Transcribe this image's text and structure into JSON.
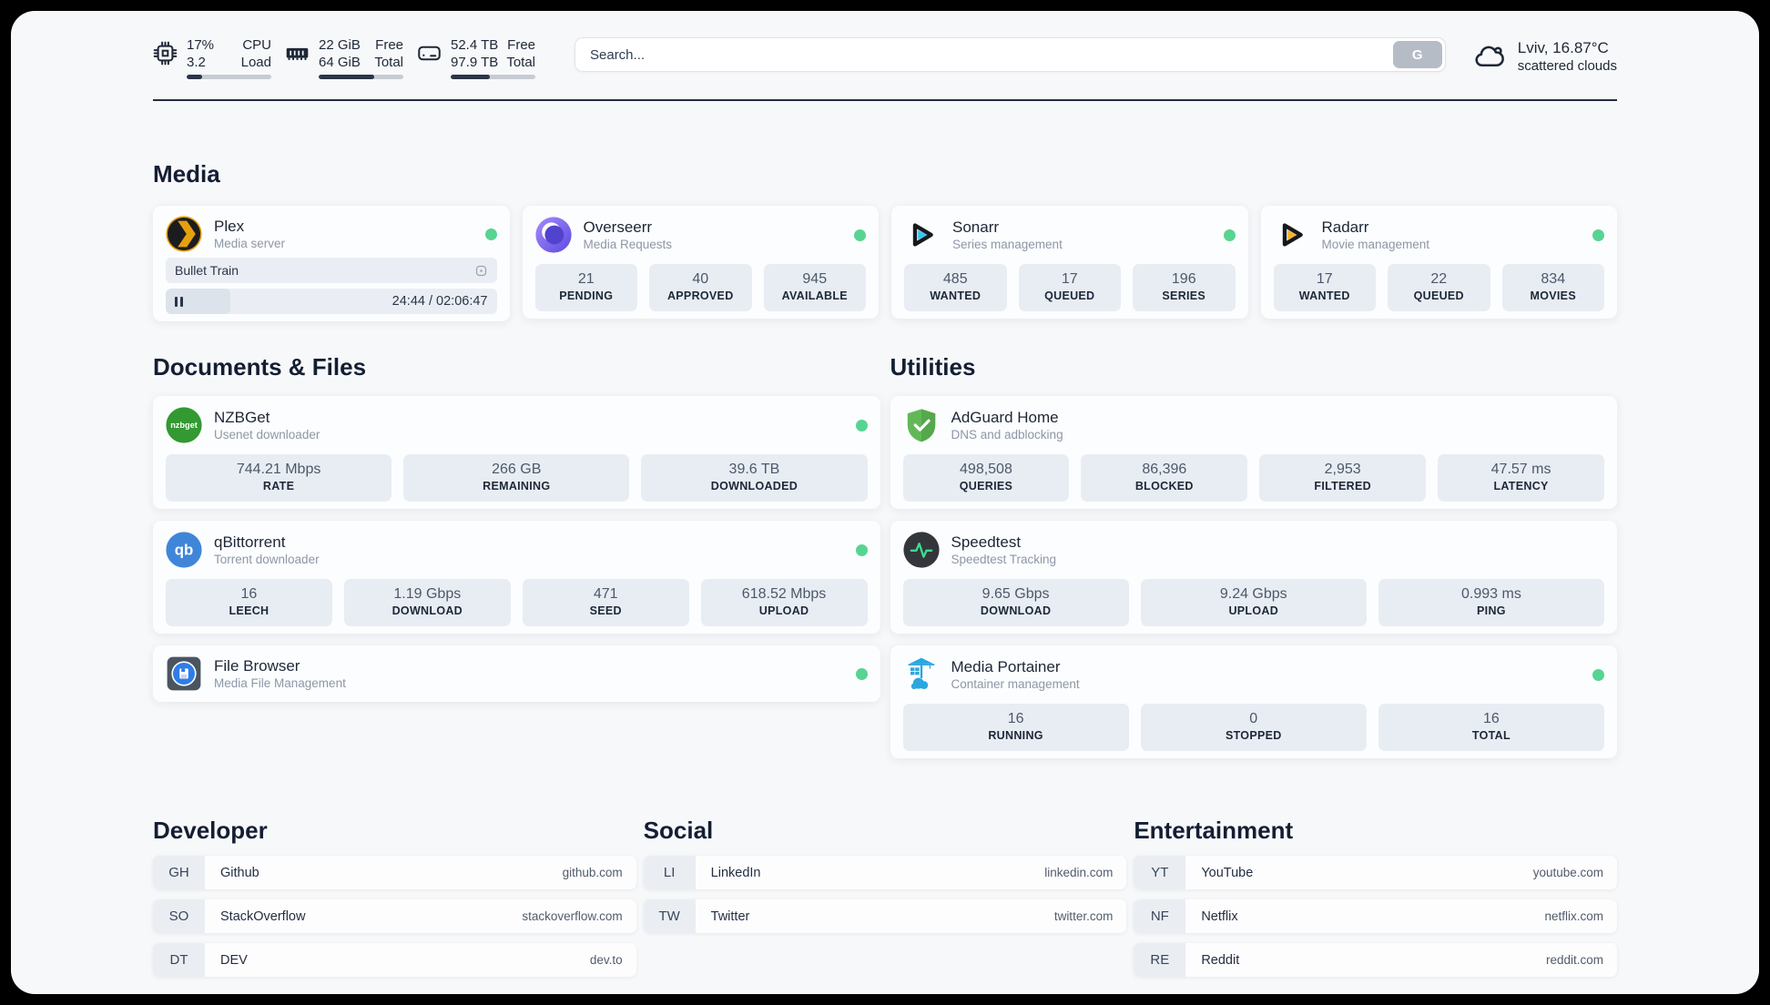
{
  "topbar": {
    "cpu": {
      "value_top": "17%",
      "value_bottom": "3.2",
      "label_top": "CPU",
      "label_bottom": "Load",
      "progress": 18
    },
    "memory": {
      "value_top": "22 GiB",
      "value_bottom": "64 GiB",
      "label_top": "Free",
      "label_bottom": "Total",
      "progress": 66
    },
    "disk": {
      "value_top": "52.4 TB",
      "value_bottom": "97.9 TB",
      "label_top": "Free",
      "label_bottom": "Total",
      "progress": 46
    },
    "search": {
      "placeholder": "Search...",
      "button_label": "G"
    },
    "weather": {
      "location_temp": "Lviv, 16.87°C",
      "condition": "scattered clouds"
    }
  },
  "sections": {
    "media": "Media",
    "documents": "Documents & Files",
    "utilities": "Utilities",
    "developer": "Developer",
    "social": "Social",
    "entertainment": "Entertainment"
  },
  "apps": {
    "plex": {
      "name": "Plex",
      "subtitle": "Media server",
      "now_playing": "Bullet Train",
      "time": "24:44 / 02:06:47",
      "progress": 19.5
    },
    "overseerr": {
      "name": "Overseerr",
      "subtitle": "Media Requests",
      "stats": [
        {
          "value": "21",
          "label": "PENDING"
        },
        {
          "value": "40",
          "label": "APPROVED"
        },
        {
          "value": "945",
          "label": "AVAILABLE"
        }
      ]
    },
    "sonarr": {
      "name": "Sonarr",
      "subtitle": "Series management",
      "stats": [
        {
          "value": "485",
          "label": "WANTED"
        },
        {
          "value": "17",
          "label": "QUEUED"
        },
        {
          "value": "196",
          "label": "SERIES"
        }
      ]
    },
    "radarr": {
      "name": "Radarr",
      "subtitle": "Movie management",
      "stats": [
        {
          "value": "17",
          "label": "WANTED"
        },
        {
          "value": "22",
          "label": "QUEUED"
        },
        {
          "value": "834",
          "label": "MOVIES"
        }
      ]
    },
    "nzbget": {
      "name": "NZBGet",
      "subtitle": "Usenet downloader",
      "stats": [
        {
          "value": "744.21 Mbps",
          "label": "RATE"
        },
        {
          "value": "266 GB",
          "label": "REMAINING"
        },
        {
          "value": "39.6 TB",
          "label": "DOWNLOADED"
        }
      ]
    },
    "qbittorrent": {
      "name": "qBittorrent",
      "subtitle": "Torrent downloader",
      "stats": [
        {
          "value": "16",
          "label": "LEECH"
        },
        {
          "value": "1.19 Gbps",
          "label": "DOWNLOAD"
        },
        {
          "value": "471",
          "label": "SEED"
        },
        {
          "value": "618.52 Mbps",
          "label": "UPLOAD"
        }
      ]
    },
    "filebrowser": {
      "name": "File Browser",
      "subtitle": "Media File Management"
    },
    "adguard": {
      "name": "AdGuard Home",
      "subtitle": "DNS and adblocking",
      "stats": [
        {
          "value": "498,508",
          "label": "QUERIES"
        },
        {
          "value": "86,396",
          "label": "BLOCKED"
        },
        {
          "value": "2,953",
          "label": "FILTERED"
        },
        {
          "value": "47.57 ms",
          "label": "LATENCY"
        }
      ]
    },
    "speedtest": {
      "name": "Speedtest",
      "subtitle": "Speedtest Tracking",
      "stats": [
        {
          "value": "9.65 Gbps",
          "label": "DOWNLOAD"
        },
        {
          "value": "9.24 Gbps",
          "label": "UPLOAD"
        },
        {
          "value": "0.993 ms",
          "label": "PING"
        }
      ]
    },
    "portainer": {
      "name": "Media Portainer",
      "subtitle": "Container management",
      "stats": [
        {
          "value": "16",
          "label": "RUNNING"
        },
        {
          "value": "0",
          "label": "STOPPED"
        },
        {
          "value": "16",
          "label": "TOTAL"
        }
      ]
    }
  },
  "bookmarks": {
    "developer": [
      {
        "abbr": "GH",
        "name": "Github",
        "url": "github.com"
      },
      {
        "abbr": "SO",
        "name": "StackOverflow",
        "url": "stackoverflow.com"
      },
      {
        "abbr": "DT",
        "name": "DEV",
        "url": "dev.to"
      }
    ],
    "social": [
      {
        "abbr": "LI",
        "name": "LinkedIn",
        "url": "linkedin.com"
      },
      {
        "abbr": "TW",
        "name": "Twitter",
        "url": "twitter.com"
      }
    ],
    "entertainment": [
      {
        "abbr": "YT",
        "name": "YouTube",
        "url": "youtube.com"
      },
      {
        "abbr": "NF",
        "name": "Netflix",
        "url": "netflix.com"
      },
      {
        "abbr": "RE",
        "name": "Reddit",
        "url": "reddit.com"
      }
    ]
  },
  "colors": {
    "status_online": "#57d492",
    "progress_fill": "#2a3547"
  }
}
